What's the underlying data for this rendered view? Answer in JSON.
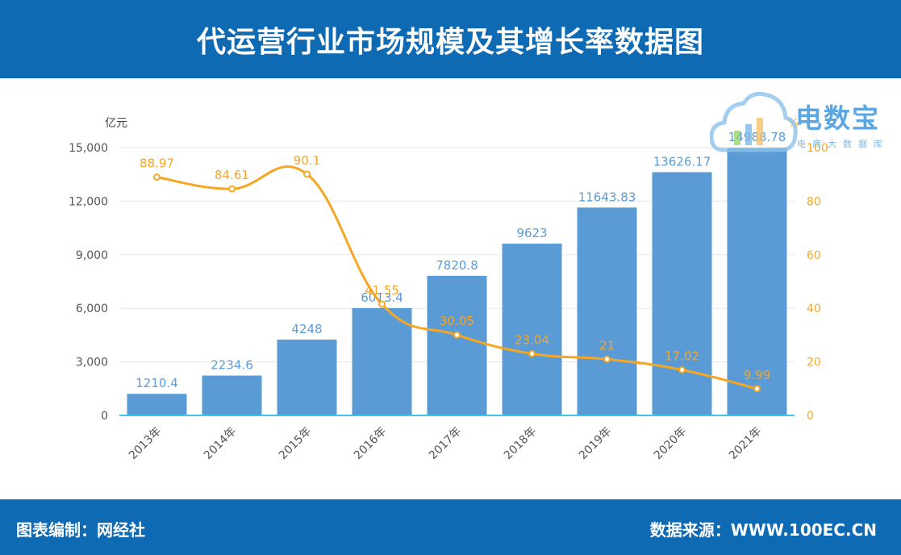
{
  "header": {
    "title": "代运营行业市场规模及其增长率数据图"
  },
  "footer": {
    "left": "图表编制：网经社",
    "right": "数据来源：WWW.100EC.CN"
  },
  "logo": {
    "brand": "电数宝",
    "sub": "电商大数据库",
    "icon": "cloud-icon"
  },
  "colors": {
    "header_bg": "#0f6ab4",
    "bar": "#5b9bd5",
    "line": "#f5a623",
    "bar_label": "#5b9bd5",
    "axis_line": "#40c4e8"
  },
  "chart_data": {
    "type": "bar",
    "categories": [
      "2013年",
      "2014年",
      "2015年",
      "2016年",
      "2017年",
      "2018年",
      "2019年",
      "2020年",
      "2021年"
    ],
    "series": [
      {
        "type": "bar",
        "axis": "left",
        "values": [
          1210.4,
          2234.6,
          4248,
          6013.4,
          7820.8,
          9623,
          11643.83,
          13626.17,
          14988.78
        ]
      },
      {
        "type": "line",
        "axis": "right",
        "smooth": true,
        "values": [
          88.97,
          84.61,
          90.1,
          41.55,
          30.05,
          23.04,
          21,
          17.02,
          9.99
        ]
      }
    ],
    "ylabel": "亿元",
    "ylim": [
      0,
      15000
    ],
    "yticks": [
      "0",
      "3,000",
      "6,000",
      "9,000",
      "12,000",
      "15,000"
    ],
    "ylabel_right": "%",
    "ylim_right": [
      0,
      100
    ],
    "yticks_right": [
      "0",
      "20",
      "40",
      "60",
      "80",
      "100"
    ],
    "grid": true
  }
}
